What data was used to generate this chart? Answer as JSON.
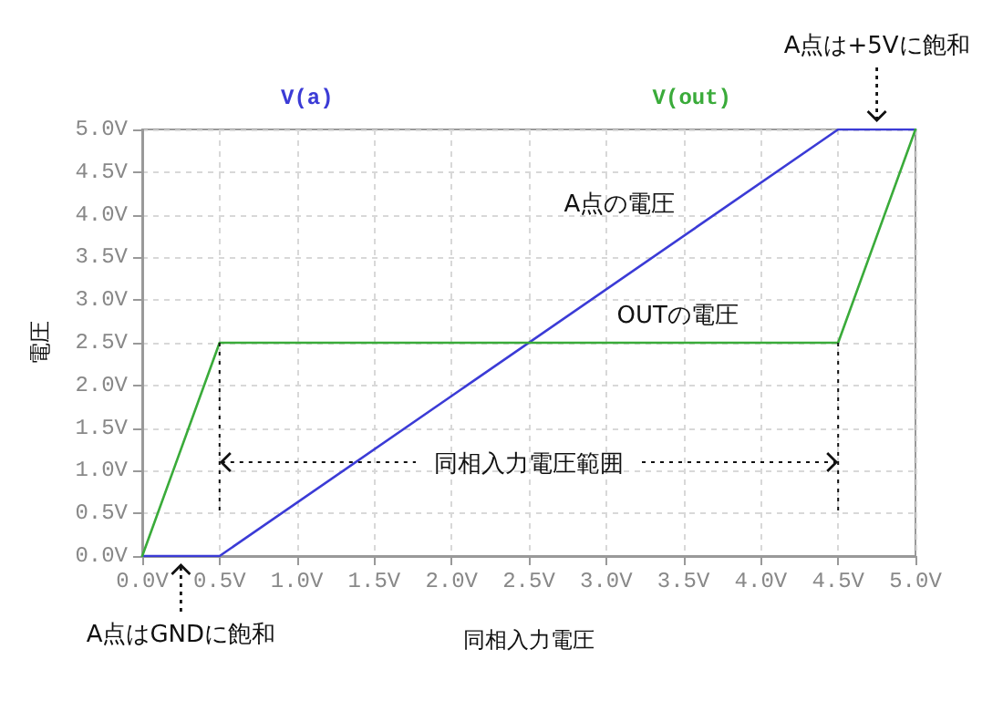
{
  "chart_data": {
    "type": "line",
    "xlabel": "同相入力電圧",
    "ylabel": "電圧",
    "series": [
      {
        "name": "V(a)",
        "color": "#3b3bd6",
        "x": [
          0,
          0.5,
          4.5,
          5
        ],
        "values": [
          0,
          0,
          5,
          5
        ]
      },
      {
        "name": "V(out)",
        "color": "#3aab3a",
        "x": [
          0,
          0.5,
          4.5,
          5
        ],
        "values": [
          0,
          2.5,
          2.5,
          5
        ]
      }
    ],
    "xlim": [
      0,
      5
    ],
    "ylim": [
      0,
      5
    ],
    "xticks": [
      {
        "value": 0,
        "label": "0.0V"
      },
      {
        "value": 0.5,
        "label": "0.5V"
      },
      {
        "value": 1,
        "label": "1.0V"
      },
      {
        "value": 1.5,
        "label": "1.5V"
      },
      {
        "value": 2,
        "label": "2.0V"
      },
      {
        "value": 2.5,
        "label": "2.5V"
      },
      {
        "value": 3,
        "label": "3.0V"
      },
      {
        "value": 3.5,
        "label": "3.5V"
      },
      {
        "value": 4,
        "label": "4.0V"
      },
      {
        "value": 4.5,
        "label": "4.5V"
      },
      {
        "value": 5,
        "label": "5.0V"
      }
    ],
    "yticks": [
      {
        "value": 0,
        "label": "0.0V"
      },
      {
        "value": 0.5,
        "label": "0.5V"
      },
      {
        "value": 1,
        "label": "1.0V"
      },
      {
        "value": 1.5,
        "label": "1.5V"
      },
      {
        "value": 2,
        "label": "2.0V"
      },
      {
        "value": 2.5,
        "label": "2.5V"
      },
      {
        "value": 3,
        "label": "3.0V"
      },
      {
        "value": 3.5,
        "label": "3.5V"
      },
      {
        "value": 4,
        "label": "4.0V"
      },
      {
        "value": 4.5,
        "label": "4.5V"
      },
      {
        "value": 5,
        "label": "5.0V"
      }
    ],
    "ref_lines": [
      {
        "axis": "x",
        "value": 0.5,
        "color": "#111111",
        "line_style": "dotted"
      },
      {
        "axis": "x",
        "value": 4.5,
        "color": "#111111",
        "line_style": "dotted"
      }
    ],
    "annotations": [
      {
        "text": "A点の電圧",
        "x": 3.54,
        "y": 3.8
      },
      {
        "text": "OUTの電圧",
        "x": 3.95,
        "y": 2.5
      },
      {
        "text": "同相入力電圧範囲",
        "x": 4.5,
        "y": 1.1
      },
      {
        "text": "A点は+5Vに飽和",
        "x": 4.75,
        "y": 5
      },
      {
        "text": "A点はGNDに飽和",
        "x": 0.25,
        "y": 0
      }
    ],
    "grid": true,
    "legend": "top",
    "marker": "none",
    "line_style": "solid"
  }
}
